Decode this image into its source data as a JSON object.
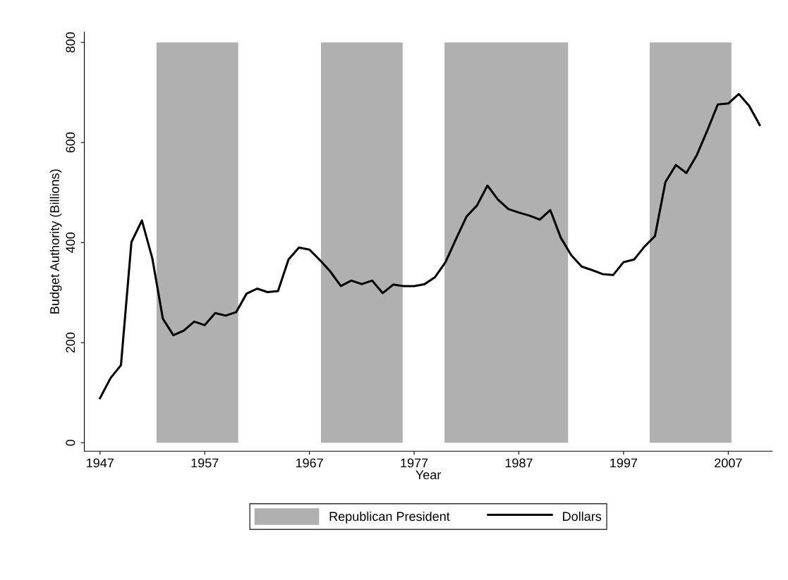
{
  "chart_data": {
    "type": "line",
    "xlabel": "Year",
    "ylabel": "Budget Authority (Billions)",
    "x": [
      1947,
      1948,
      1949,
      1950,
      1951,
      1952,
      1953,
      1954,
      1955,
      1956,
      1957,
      1958,
      1959,
      1960,
      1961,
      1962,
      1963,
      1964,
      1965,
      1966,
      1967,
      1968,
      1969,
      1970,
      1971,
      1972,
      1973,
      1974,
      1975,
      1976,
      1977,
      1978,
      1979,
      1980,
      1981,
      1982,
      1983,
      1984,
      1985,
      1986,
      1987,
      1988,
      1989,
      1990,
      1991,
      1992,
      1993,
      1994,
      1995,
      1996,
      1997,
      1998,
      1999,
      2000,
      2001,
      2002,
      2003,
      2004,
      2005,
      2006,
      2007,
      2008,
      2009,
      2010
    ],
    "series": [
      {
        "name": "Dollars",
        "color": "#000000",
        "values": [
          89,
          129,
          155,
          401,
          444,
          368,
          248,
          215,
          224,
          242,
          235,
          259,
          254,
          261,
          298,
          308,
          301,
          303,
          366,
          390,
          386,
          365,
          342,
          313,
          324,
          317,
          324,
          299,
          316,
          313,
          313,
          317,
          331,
          361,
          407,
          452,
          474,
          514,
          486,
          467,
          460,
          454,
          446,
          465,
          410,
          375,
          352,
          345,
          337,
          335,
          361,
          366,
          392,
          413,
          521,
          555,
          539,
          575,
          624,
          676,
          678,
          697,
          673,
          635
        ]
      }
    ],
    "bands": [
      {
        "axis": "x",
        "from": 1952.4,
        "to": 1960.2,
        "label": "Republican President",
        "color": "#b0b0b0"
      },
      {
        "axis": "x",
        "from": 1968.1,
        "to": 1975.9,
        "color": "#b0b0b0"
      },
      {
        "axis": "x",
        "from": 1979.9,
        "to": 1991.7,
        "color": "#b0b0b0"
      },
      {
        "axis": "x",
        "from": 1999.5,
        "to": 2007.3,
        "color": "#b0b0b0"
      }
    ],
    "xlim": [
      1945.5,
      2011.2
    ],
    "xticks": [
      1947,
      1957,
      1967,
      1977,
      1987,
      1997,
      2007
    ],
    "ylim": [
      -17,
      821
    ],
    "yticks": [
      0,
      200,
      400,
      600,
      800
    ],
    "grid": false,
    "legend": "bottom",
    "marker": "none",
    "line_style": "solid"
  }
}
